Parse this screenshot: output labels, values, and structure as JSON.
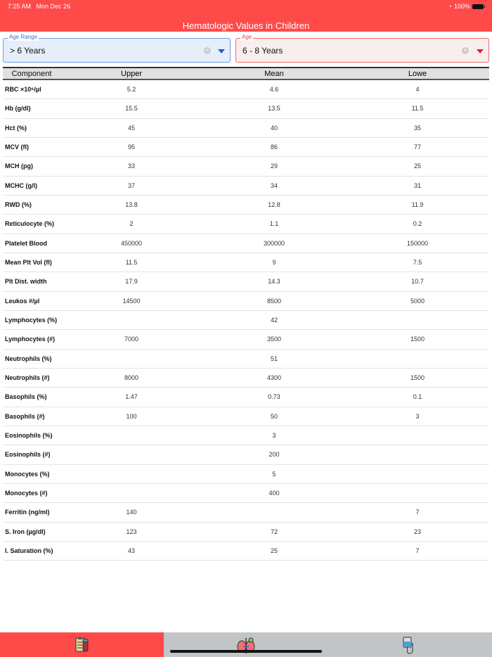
{
  "status": {
    "time": "7:25 AM",
    "date": "Mon Dec 26",
    "battery": "100%"
  },
  "header": {
    "title": "Hematologic Values in Children"
  },
  "filters": {
    "age_range": {
      "label": "Age Range",
      "value": "> 6 Years"
    },
    "age": {
      "label": "Age",
      "value": "6 - 8 Years"
    }
  },
  "table": {
    "columns": [
      "Component",
      "Upper",
      "Mean",
      "Lowe"
    ],
    "rows": [
      [
        "RBC ×10⁶/µl",
        "5.2",
        "4.6",
        "4"
      ],
      [
        "Hb (g/dl)",
        "15.5",
        "13.5",
        "11.5"
      ],
      [
        "Hct (%)",
        "45",
        "40",
        "35"
      ],
      [
        "MCV (fl)",
        "95",
        "86",
        "77"
      ],
      [
        "MCH (pg)",
        "33",
        "29",
        "25"
      ],
      [
        "MCHC (g/l)",
        "37",
        "34",
        "31"
      ],
      [
        "RWD (%)",
        "13.8",
        "12.8",
        "11.9"
      ],
      [
        "Reticulocyte (%)",
        "2",
        "1.1",
        "0.2"
      ],
      [
        "Platelet Blood",
        "450000",
        "300000",
        "150000"
      ],
      [
        "Mean Plt Vol (fl)",
        "11.5",
        "9",
        "7.5"
      ],
      [
        "Plt Dist. width",
        "17.9",
        "14.3",
        "10.7"
      ],
      [
        "Leukos #/µl",
        "14500",
        "8500",
        "5000"
      ],
      [
        "Lymphocytes (%)",
        "",
        "42",
        ""
      ],
      [
        "Lymphocytes (#)",
        "7000",
        "3500",
        "1500"
      ],
      [
        "Neutrophils (%)",
        "",
        "51",
        ""
      ],
      [
        "Neutrophils (#)",
        "8000",
        "4300",
        "1500"
      ],
      [
        "Basophils (%)",
        "1.47",
        "0.73",
        "0.1"
      ],
      [
        "Basophils (#)",
        "100",
        "50",
        "3"
      ],
      [
        "Eosinophils (%)",
        "",
        "3",
        ""
      ],
      [
        "Eosinophils (#)",
        "",
        "200",
        ""
      ],
      [
        "Monocytes (%)",
        "",
        "5",
        ""
      ],
      [
        "Monocytes (#)",
        "",
        "400",
        ""
      ],
      [
        "Ferritin (ng/ml)",
        "140",
        "",
        "7"
      ],
      [
        "S. Iron (µg/dl)",
        "123",
        "72",
        "23"
      ],
      [
        "I. Saturation (%)",
        "43",
        "25",
        "7"
      ]
    ]
  },
  "tabbar": {
    "tabs": [
      {
        "icon": "blood-test-clipboard-icon",
        "active": true
      },
      {
        "icon": "kidney-icon",
        "active": false
      },
      {
        "icon": "iv-bag-icon",
        "active": false
      }
    ],
    "accent": "#ff4a4a",
    "inactive_bg": "#c2c5c8"
  }
}
